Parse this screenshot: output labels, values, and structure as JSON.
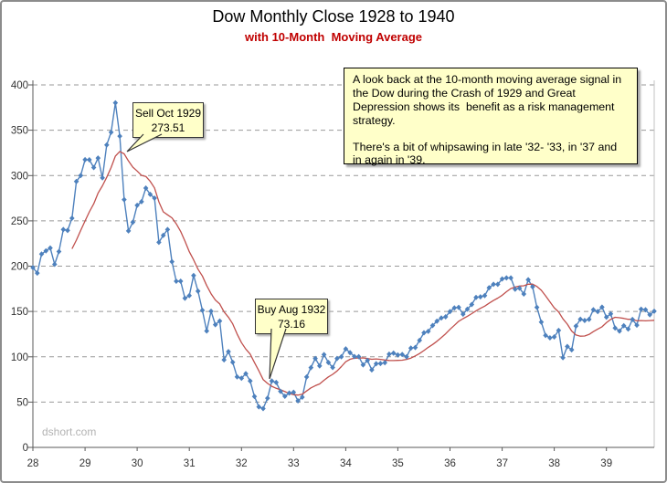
{
  "header": {
    "title": "Dow Monthly Close 1928 to 1940",
    "subtitle": "with 10-Month  Moving Average",
    "subtitle_color": "#c00000"
  },
  "watermark": "dshort.com",
  "annotation_box": {
    "paragraph1": "A look back at the 10-month moving average signal in the Dow during the Crash of 1929 and Great Depression shows its  benefit as a risk management strategy.",
    "paragraph2": "There's a bit of whipsawing in late '32- '33, in '37 and in again in '39.",
    "background": "#ffffc9"
  },
  "callouts": {
    "sell": {
      "line1": "Sell Oct 1929",
      "line2": "273.51"
    },
    "buy": {
      "line1": "Buy Aug 1932",
      "line2": "73.16"
    }
  },
  "chart_data": {
    "type": "line",
    "title": "Dow Monthly Close 1928 to 1940",
    "subtitle": "with 10-Month Moving Average",
    "start_month": "1928-01",
    "end_month": "1939-12",
    "x_tick_labels": [
      "28",
      "29",
      "30",
      "31",
      "32",
      "33",
      "34",
      "35",
      "36",
      "37",
      "38",
      "39"
    ],
    "ylim": [
      0,
      400
    ],
    "yticks": [
      0,
      50,
      100,
      150,
      200,
      250,
      300,
      350,
      400
    ],
    "grid": "horizontal-dashed",
    "legend": "none",
    "series": [
      {
        "name": "Dow monthly close",
        "color": "#4e81bd",
        "marker": "diamond",
        "values": [
          198.4,
          192.3,
          213.3,
          216.9,
          220.0,
          202.0,
          216.1,
          240.4,
          239.4,
          252.9,
          293.4,
          300.0,
          317.5,
          317.4,
          308.8,
          319.3,
          297.4,
          333.8,
          347.7,
          380.3,
          343.5,
          273.5,
          238.9,
          248.5,
          267.1,
          271.1,
          286.1,
          279.2,
          275.1,
          226.3,
          234.0,
          240.4,
          204.9,
          183.4,
          183.4,
          164.6,
          167.6,
          189.7,
          172.4,
          151.2,
          128.5,
          150.2,
          135.4,
          139.4,
          96.6,
          105.7,
          93.9,
          77.9,
          76.4,
          81.4,
          73.3,
          56.1,
          44.7,
          42.8,
          54.3,
          73.2,
          71.6,
          61.9,
          56.4,
          59.9,
          60.9,
          51.4,
          55.4,
          77.7,
          88.1,
          98.1,
          90.0,
          102.4,
          93.7,
          88.2,
          98.1,
          99.9,
          108.7,
          104.6,
          100.3,
          100.2,
          91.1,
          95.9,
          85.5,
          92.3,
          92.6,
          93.4,
          102.9,
          104.0,
          102.0,
          102.6,
          100.1,
          109.5,
          110.2,
          118.2,
          126.4,
          128.1,
          134.5,
          139.3,
          142.9,
          144.1,
          149.8,
          154.0,
          154.6,
          147.0,
          152.5,
          157.7,
          165.5,
          166.1,
          167.5,
          176.2,
          180.0,
          179.9,
          185.9,
          187.0,
          187.0,
          174.6,
          175.7,
          169.3,
          185.0,
          177.2,
          154.6,
          138.2,
          123.5,
          120.9,
          121.9,
          129.1,
          99.0,
          111.3,
          107.7,
          133.9,
          141.5,
          140.1,
          141.4,
          151.9,
          149.8,
          154.8,
          143.7,
          147.3,
          131.8,
          128.4,
          134.3,
          130.6,
          141.2,
          134.9,
          152.5,
          151.9,
          146.4,
          150.2
        ]
      },
      {
        "name": "10-month moving average",
        "color": "#c0504d",
        "marker": "none",
        "derivation": "simple moving average (window 10) of the close series, plotted from the 10th month onward"
      }
    ],
    "signals": [
      {
        "label": "Sell Oct 1929",
        "value": 273.51
      },
      {
        "label": "Buy Aug 1932",
        "value": 73.16
      }
    ]
  }
}
